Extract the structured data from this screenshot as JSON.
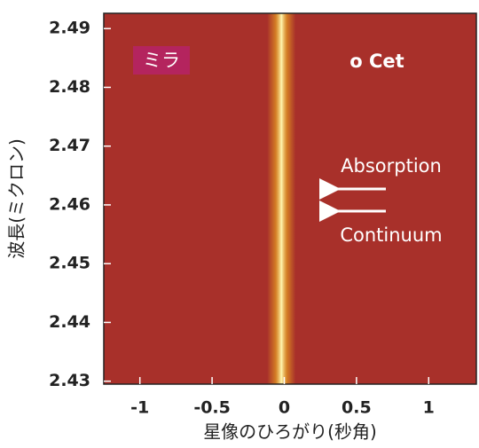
{
  "chart_data": {
    "type": "image",
    "x_label": "星像のひろがり(秒角)",
    "y_label": "波長(ミクロン)",
    "xlim": [
      -1.25,
      1.33
    ],
    "xticks": [
      -1,
      -0.5,
      0,
      0.5,
      1
    ],
    "ylim": [
      2.4295,
      2.4926
    ],
    "yticks": [
      2.43,
      2.44,
      2.45,
      2.46,
      2.47,
      2.48,
      2.49
    ],
    "source_x": -0.02,
    "background_color": "#a8302a",
    "peak_color": "#fff6b0",
    "annotations": {
      "name_ja": "ミラ",
      "name": "o Cet",
      "absorption": "Absorption",
      "continuum": "Continuum"
    }
  }
}
